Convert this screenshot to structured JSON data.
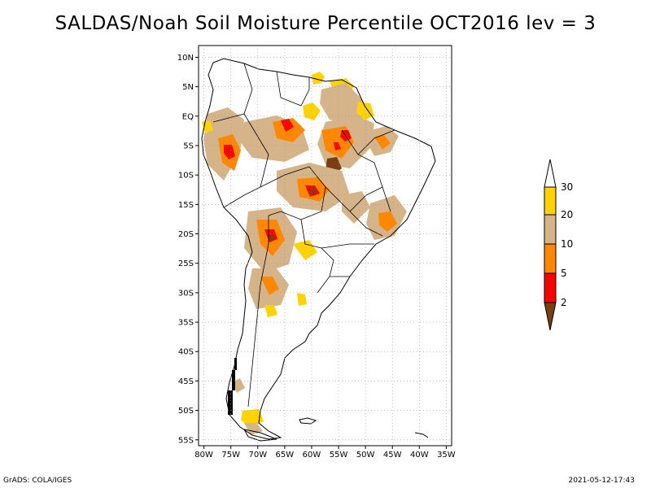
{
  "title": "SALDAS/Noah Soil Moisture Percentile OCT2016 lev = 3",
  "map": {
    "lat_labels": [
      "10N",
      "5N",
      "EQ",
      "5S",
      "10S",
      "15S",
      "20S",
      "25S",
      "30S",
      "35S",
      "40S",
      "45S",
      "50S",
      "55S"
    ],
    "lon_labels": [
      "80W",
      "75W",
      "70W",
      "65W",
      "60W",
      "55W",
      "50W",
      "45W",
      "40W",
      "35W"
    ],
    "lat_values": [
      10,
      5,
      0,
      -5,
      -10,
      -15,
      -20,
      -25,
      -30,
      -35,
      -40,
      -45,
      -50,
      -55
    ],
    "lon_values": [
      -80,
      -75,
      -70,
      -65,
      -60,
      -55,
      -50,
      -45,
      -40,
      -35
    ],
    "lon_range": [
      -81,
      -34
    ],
    "lat_range": [
      -56,
      12
    ],
    "grid": true
  },
  "legend": {
    "labels": [
      "2",
      "5",
      "10",
      "20",
      "30"
    ],
    "colors": [
      "#7a3f10",
      "#ff0000",
      "#ff8800",
      "#d6b48a",
      "#ffd200",
      "#ffffff"
    ]
  },
  "footer": {
    "left": "GrADS: COLA/IGES",
    "right": "2021-05-12-17:43"
  }
}
